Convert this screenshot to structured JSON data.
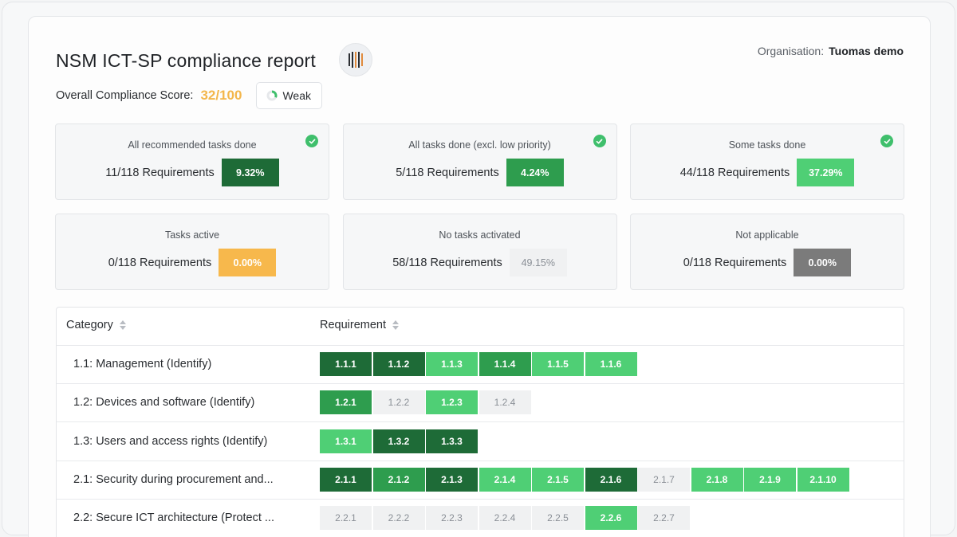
{
  "report": {
    "title": "NSM ICT-SP compliance report",
    "logo_icon": "vertical-bars-logo-icon",
    "organisation_label": "Organisation:",
    "organisation_name": "Tuomas demo",
    "score_label": "Overall Compliance Score:",
    "score_value": "32/100",
    "score_fraction": 0.32,
    "rating_label": "Weak"
  },
  "colors": {
    "dark_green": "#1e6b37",
    "mid_green": "#2e9d4e",
    "light_green": "#4fcf75",
    "orange": "#f7b84c",
    "grey_light": "#f0f1f2",
    "grey_dark": "#7b7b7b",
    "score": "#f3b64b"
  },
  "stats": [
    {
      "caption": "All recommended tasks done",
      "requirements": "11/118 Requirements",
      "percent": "9.32%",
      "checked": true
    },
    {
      "caption": "All tasks done (excl. low priority)",
      "requirements": "5/118 Requirements",
      "percent": "4.24%",
      "checked": true
    },
    {
      "caption": "Some tasks done",
      "requirements": "44/118 Requirements",
      "percent": "37.29%",
      "checked": true
    },
    {
      "caption": "Tasks active",
      "requirements": "0/118 Requirements",
      "percent": "0.00%",
      "checked": false
    },
    {
      "caption": "No tasks activated",
      "requirements": "58/118 Requirements",
      "percent": "49.15%",
      "checked": false
    },
    {
      "caption": "Not applicable",
      "requirements": "0/118 Requirements",
      "percent": "0.00%",
      "checked": false
    }
  ],
  "table": {
    "headers": {
      "category": "Category",
      "requirement": "Requirement"
    },
    "rows": [
      {
        "category": "1.1: Management (Identify)",
        "chips": [
          {
            "label": "1.1.1",
            "status": "dark"
          },
          {
            "label": "1.1.2",
            "status": "dark"
          },
          {
            "label": "1.1.3",
            "status": "light"
          },
          {
            "label": "1.1.4",
            "status": "mid"
          },
          {
            "label": "1.1.5",
            "status": "light"
          },
          {
            "label": "1.1.6",
            "status": "light"
          }
        ]
      },
      {
        "category": "1.2: Devices and software (Identify)",
        "chips": [
          {
            "label": "1.2.1",
            "status": "mid"
          },
          {
            "label": "1.2.2",
            "status": "none"
          },
          {
            "label": "1.2.3",
            "status": "light"
          },
          {
            "label": "1.2.4",
            "status": "none"
          }
        ]
      },
      {
        "category": "1.3: Users and access rights (Identify)",
        "chips": [
          {
            "label": "1.3.1",
            "status": "light"
          },
          {
            "label": "1.3.2",
            "status": "dark"
          },
          {
            "label": "1.3.3",
            "status": "dark"
          }
        ]
      },
      {
        "category": "2.1: Security during procurement and...",
        "chips": [
          {
            "label": "2.1.1",
            "status": "dark"
          },
          {
            "label": "2.1.2",
            "status": "mid"
          },
          {
            "label": "2.1.3",
            "status": "dark"
          },
          {
            "label": "2.1.4",
            "status": "light"
          },
          {
            "label": "2.1.5",
            "status": "light"
          },
          {
            "label": "2.1.6",
            "status": "dark"
          },
          {
            "label": "2.1.7",
            "status": "none"
          },
          {
            "label": "2.1.8",
            "status": "light"
          },
          {
            "label": "2.1.9",
            "status": "light"
          },
          {
            "label": "2.1.10",
            "status": "light"
          }
        ]
      },
      {
        "category": "2.2: Secure ICT architecture (Protect ...",
        "chips": [
          {
            "label": "2.2.1",
            "status": "none"
          },
          {
            "label": "2.2.2",
            "status": "none"
          },
          {
            "label": "2.2.3",
            "status": "none"
          },
          {
            "label": "2.2.4",
            "status": "none"
          },
          {
            "label": "2.2.5",
            "status": "none"
          },
          {
            "label": "2.2.6",
            "status": "light"
          },
          {
            "label": "2.2.7",
            "status": "none"
          }
        ]
      }
    ]
  }
}
